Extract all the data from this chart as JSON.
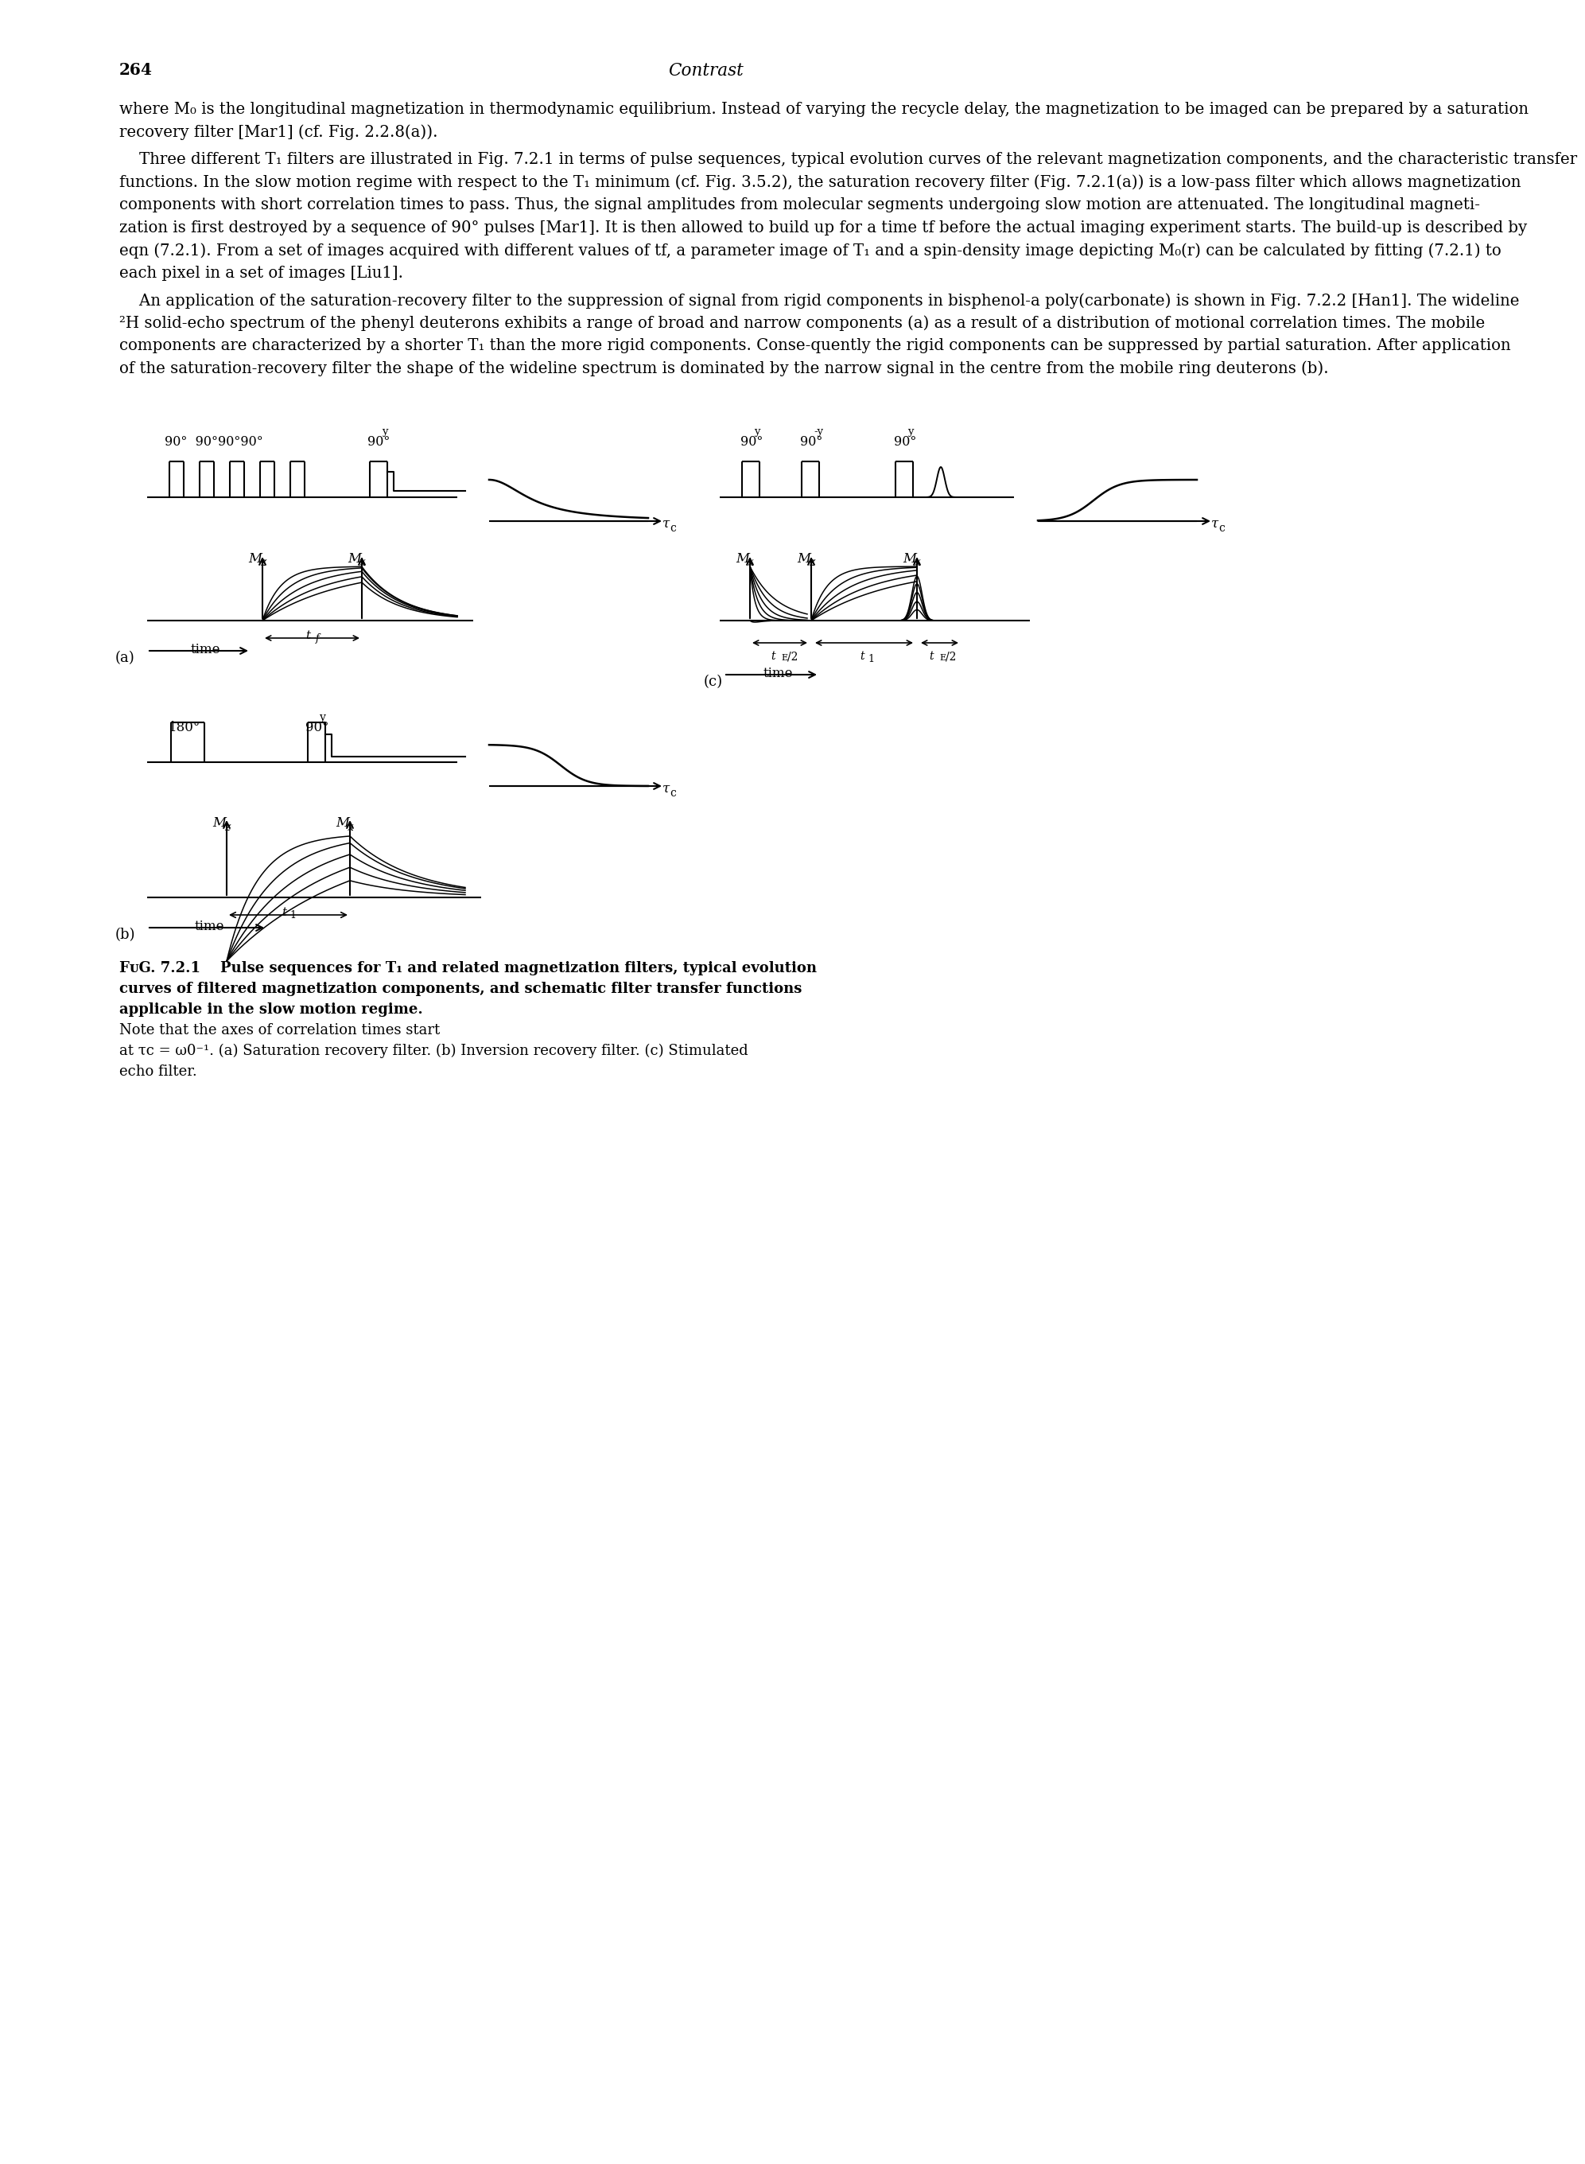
{
  "page_number": "264",
  "page_title": "Contrast",
  "background": "#ffffff",
  "body_para1_lines": [
    "where M₀ is the longitudinal magnetization in thermodynamic equilibrium. Instead of varying the recycle delay, the magnetization to be imaged can be prepared by a saturation",
    "recovery filter [Mar1] (cf. Fig. 2.2.8(a))."
  ],
  "body_para2_lines": [
    "    Three different T₁ filters are illustrated in Fig. 7.2.1 in terms of pulse sequences, typical evolution curves of the relevant magnetization components, and the characteristic transfer",
    "functions. In the slow motion regime with respect to the T₁ minimum (cf. Fig. 3.5.2), the saturation recovery filter (Fig. 7.2.1(a)) is a low-pass filter which allows magnetization",
    "components with short correlation times to pass. Thus, the signal amplitudes from molecular segments undergoing slow motion are attenuated. The longitudinal magneti-",
    "zation is first destroyed by a sequence of 90° pulses [Mar1]. It is then allowed to build up for a time tf before the actual imaging experiment starts. The build-up is described by",
    "eqn (7.2.1). From a set of images acquired with different values of tf, a parameter image of T₁ and a spin-density image depicting M₀(r) can be calculated by fitting (7.2.1) to",
    "each pixel in a set of images [Liu1]."
  ],
  "body_para3_lines": [
    "    An application of the saturation-recovery filter to the suppression of signal from rigid components in bisphenol-a poly(carbonate) is shown in Fig. 7.2.2 [Han1]. The wideline",
    "²H solid-echo spectrum of the phenyl deuterons exhibits a range of broad and narrow components (a) as a result of a distribution of motional correlation times. The mobile",
    "components are characterized by a shorter T₁ than the more rigid components. Conse-quently the rigid components can be suppressed by partial saturation. After application",
    "of the saturation-recovery filter the shape of the wideline spectrum is dominated by the narrow signal in the centre from the mobile ring deuterons (b)."
  ],
  "caption_bold_lines": [
    "FᴜG. 7.2.1    Pulse sequences for T₁ and related magnetization filters, typical evolution",
    "curves of filtered magnetization components, and schematic filter transfer functions",
    "applicable in the slow motion regime."
  ],
  "caption_normal_lines": [
    "Note that the axes of correlation times start",
    "at τc = ω0⁻¹. (a) Saturation recovery filter. (b) Inversion recovery filter. (c) Stimulated",
    "echo filter."
  ]
}
